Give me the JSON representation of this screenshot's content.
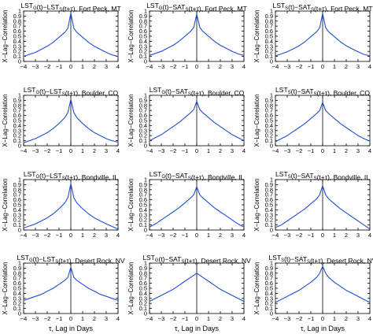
{
  "figure": {
    "series_color": "#1f4fd1",
    "ylabel": "X−Lag−Correlation",
    "xlabel": "τ, Lag in Days",
    "x_ticks": [
      "−4",
      "−3",
      "−2",
      "−1",
      "0",
      "1",
      "2",
      "3",
      "4"
    ],
    "y_ticks": [
      "0",
      "0.1",
      "0.2",
      "0.3",
      "0.4",
      "0.5",
      "0.6",
      "0.7",
      "0.8",
      "0.9",
      "1"
    ]
  },
  "chart_data": [
    {
      "type": "line",
      "row": 0,
      "col": 0,
      "title_main": "LST",
      "title_parts": [
        [
          "LST",
          "G"
        ],
        [
          "(t)−LST",
          "S"
        ],
        [
          "(t+τ), Fort Peck, MT",
          ""
        ]
      ],
      "xlim": [
        -4,
        4
      ],
      "ylim": [
        0,
        1
      ],
      "x": [
        -4,
        -3.5,
        -3,
        -2.5,
        -2,
        -1.5,
        -1,
        -0.5,
        -0.25,
        0,
        0.25,
        0.5,
        1,
        1.5,
        2,
        2.5,
        3,
        3.5,
        4
      ],
      "values": [
        0.1,
        0.14,
        0.18,
        0.24,
        0.3,
        0.38,
        0.48,
        0.58,
        0.66,
        0.96,
        0.66,
        0.58,
        0.48,
        0.38,
        0.3,
        0.24,
        0.18,
        0.13,
        0.1
      ]
    },
    {
      "type": "line",
      "row": 0,
      "col": 1,
      "title_parts": [
        [
          "LST",
          "G"
        ],
        [
          "(t)−SAT",
          "S"
        ],
        [
          "(t+τ), Fort Peck, MT",
          ""
        ]
      ],
      "xlim": [
        -4,
        4
      ],
      "ylim": [
        0,
        1
      ],
      "x": [
        -4,
        -3.5,
        -3,
        -2.5,
        -2,
        -1.5,
        -1,
        -0.5,
        -0.25,
        0,
        0.25,
        0.5,
        1,
        1.5,
        2,
        2.5,
        3,
        3.5,
        4
      ],
      "values": [
        0.12,
        0.16,
        0.2,
        0.26,
        0.32,
        0.4,
        0.5,
        0.6,
        0.68,
        0.94,
        0.68,
        0.6,
        0.5,
        0.4,
        0.32,
        0.26,
        0.2,
        0.15,
        0.12
      ]
    },
    {
      "type": "line",
      "row": 0,
      "col": 2,
      "title_parts": [
        [
          "LST",
          "S"
        ],
        [
          "(t)−SAT",
          "S"
        ],
        [
          "(t+τ), Fort Peck, MT",
          ""
        ]
      ],
      "xlim": [
        -4,
        4
      ],
      "ylim": [
        0,
        1
      ],
      "x": [
        -4,
        -3.5,
        -3,
        -2.5,
        -2,
        -1.5,
        -1,
        -0.5,
        -0.25,
        0,
        0.25,
        0.5,
        1,
        1.5,
        2,
        2.5,
        3,
        3.5,
        4
      ],
      "values": [
        0.11,
        0.15,
        0.19,
        0.25,
        0.31,
        0.39,
        0.49,
        0.59,
        0.67,
        0.95,
        0.67,
        0.59,
        0.49,
        0.39,
        0.31,
        0.25,
        0.19,
        0.14,
        0.11
      ]
    },
    {
      "type": "line",
      "row": 1,
      "col": 0,
      "title_parts": [
        [
          "LST",
          "G"
        ],
        [
          "(t)−LST",
          "S"
        ],
        [
          "(t+τ), Boulder, CO",
          ""
        ]
      ],
      "xlim": [
        -4,
        4
      ],
      "ylim": [
        0,
        1
      ],
      "x": [
        -4,
        -3.5,
        -3,
        -2.5,
        -2,
        -1.5,
        -1,
        -0.5,
        -0.25,
        0,
        0.25,
        0.5,
        1,
        1.5,
        2,
        2.5,
        3,
        3.5,
        4
      ],
      "values": [
        0.06,
        0.1,
        0.14,
        0.2,
        0.26,
        0.34,
        0.44,
        0.56,
        0.66,
        0.92,
        0.66,
        0.56,
        0.44,
        0.34,
        0.26,
        0.2,
        0.14,
        0.1,
        0.07
      ]
    },
    {
      "type": "line",
      "row": 1,
      "col": 1,
      "title_parts": [
        [
          "LST",
          "G"
        ],
        [
          "(t)−SAT",
          "S"
        ],
        [
          "(t+τ), Boulder, CO",
          ""
        ]
      ],
      "xlim": [
        -4,
        4
      ],
      "ylim": [
        0,
        1
      ],
      "x": [
        -4,
        -3.5,
        -3,
        -2.5,
        -2,
        -1.5,
        -1,
        -0.5,
        -0.25,
        0,
        0.25,
        0.5,
        1,
        1.5,
        2,
        2.5,
        3,
        3.5,
        4
      ],
      "values": [
        0.1,
        0.16,
        0.22,
        0.3,
        0.38,
        0.46,
        0.56,
        0.66,
        0.72,
        0.88,
        0.72,
        0.66,
        0.56,
        0.46,
        0.38,
        0.3,
        0.22,
        0.16,
        0.1
      ]
    },
    {
      "type": "line",
      "row": 1,
      "col": 2,
      "title_parts": [
        [
          "LST",
          "S"
        ],
        [
          "(t)−SAT",
          "S"
        ],
        [
          "(t+τ), Boulder, CO",
          ""
        ]
      ],
      "xlim": [
        -4,
        4
      ],
      "ylim": [
        0,
        1
      ],
      "x": [
        -4,
        -3.5,
        -3,
        -2.5,
        -2,
        -1.5,
        -1,
        -0.5,
        -0.25,
        0,
        0.25,
        0.5,
        1,
        1.5,
        2,
        2.5,
        3,
        3.5,
        4
      ],
      "values": [
        0.08,
        0.14,
        0.2,
        0.28,
        0.36,
        0.44,
        0.54,
        0.64,
        0.7,
        0.86,
        0.7,
        0.64,
        0.54,
        0.44,
        0.36,
        0.28,
        0.2,
        0.14,
        0.09
      ]
    },
    {
      "type": "line",
      "row": 2,
      "col": 0,
      "title_parts": [
        [
          "LST",
          "G"
        ],
        [
          "(t)−LST",
          "S"
        ],
        [
          "(t+τ), Bondville, IL",
          ""
        ]
      ],
      "xlim": [
        -4,
        4
      ],
      "ylim": [
        0,
        1
      ],
      "x": [
        -4,
        -3.5,
        -3,
        -2.5,
        -2,
        -1.5,
        -1,
        -0.5,
        -0.25,
        0,
        0.25,
        0.5,
        1,
        1.5,
        2,
        2.5,
        3,
        3.5,
        4
      ],
      "values": [
        0.04,
        0.08,
        0.12,
        0.18,
        0.24,
        0.32,
        0.42,
        0.54,
        0.64,
        0.92,
        0.64,
        0.54,
        0.42,
        0.32,
        0.24,
        0.18,
        0.12,
        0.07,
        0.02
      ]
    },
    {
      "type": "line",
      "row": 2,
      "col": 1,
      "title_parts": [
        [
          "LST",
          "G"
        ],
        [
          "(t)−SAT",
          "S"
        ],
        [
          "(t+τ), Bondville, IL",
          ""
        ]
      ],
      "xlim": [
        -4,
        4
      ],
      "ylim": [
        0,
        1
      ],
      "x": [
        -4,
        -3.5,
        -3,
        -2.5,
        -2,
        -1.5,
        -1,
        -0.5,
        -0.25,
        0,
        0.25,
        0.5,
        1,
        1.5,
        2,
        2.5,
        3,
        3.5,
        4
      ],
      "values": [
        0.06,
        0.12,
        0.2,
        0.28,
        0.36,
        0.44,
        0.54,
        0.64,
        0.7,
        0.86,
        0.7,
        0.64,
        0.54,
        0.44,
        0.36,
        0.28,
        0.2,
        0.12,
        0.06
      ]
    },
    {
      "type": "line",
      "row": 2,
      "col": 2,
      "title_parts": [
        [
          "LST",
          "S"
        ],
        [
          "(t)−SAT",
          "S"
        ],
        [
          "(t+τ), Bondville, IL",
          ""
        ]
      ],
      "xlim": [
        -4,
        4
      ],
      "ylim": [
        0,
        1
      ],
      "x": [
        -4,
        -3.5,
        -3,
        -2.5,
        -2,
        -1.5,
        -1,
        -0.5,
        -0.25,
        0,
        0.25,
        0.5,
        1,
        1.5,
        2,
        2.5,
        3,
        3.5,
        4
      ],
      "values": [
        0.05,
        0.1,
        0.18,
        0.26,
        0.34,
        0.42,
        0.52,
        0.62,
        0.7,
        0.88,
        0.7,
        0.62,
        0.52,
        0.42,
        0.34,
        0.26,
        0.18,
        0.1,
        0.02
      ]
    },
    {
      "type": "line",
      "row": 3,
      "col": 0,
      "title_parts": [
        [
          "LST",
          "G"
        ],
        [
          "(t)−LST",
          "S"
        ],
        [
          "(t+τ), Desert Rock, NV",
          ""
        ]
      ],
      "xlim": [
        -4,
        4
      ],
      "ylim": [
        0,
        1
      ],
      "x": [
        -4,
        -3.5,
        -3,
        -2.5,
        -2,
        -1.5,
        -1,
        -0.5,
        -0.25,
        0,
        0.25,
        0.5,
        1,
        1.5,
        2,
        2.5,
        3,
        3.5,
        4
      ],
      "values": [
        0.26,
        0.3,
        0.34,
        0.38,
        0.44,
        0.5,
        0.58,
        0.66,
        0.72,
        0.92,
        0.72,
        0.66,
        0.58,
        0.5,
        0.44,
        0.38,
        0.34,
        0.3,
        0.26
      ]
    },
    {
      "type": "line",
      "row": 3,
      "col": 1,
      "title_parts": [
        [
          "LST",
          "G"
        ],
        [
          "(t)−SAT",
          "S"
        ],
        [
          "(t+τ), Desert Rock, NV",
          ""
        ]
      ],
      "xlim": [
        -4,
        4
      ],
      "ylim": [
        0,
        1
      ],
      "x": [
        -4,
        -3.5,
        -3,
        -2.5,
        -2,
        -1.5,
        -1,
        -0.5,
        -0.25,
        0,
        0.25,
        0.5,
        1,
        1.5,
        2,
        2.5,
        3,
        3.5,
        4
      ],
      "values": [
        0.24,
        0.3,
        0.36,
        0.42,
        0.48,
        0.56,
        0.64,
        0.72,
        0.76,
        0.8,
        0.76,
        0.72,
        0.64,
        0.56,
        0.48,
        0.42,
        0.36,
        0.3,
        0.24
      ]
    },
    {
      "type": "line",
      "row": 3,
      "col": 2,
      "title_parts": [
        [
          "LST",
          "S"
        ],
        [
          "(t)−SAT",
          "S"
        ],
        [
          "(t+τ), Desert Rock, NV",
          ""
        ]
      ],
      "xlim": [
        -4,
        4
      ],
      "ylim": [
        0,
        1
      ],
      "x": [
        -4,
        -3.5,
        -3,
        -2.5,
        -2,
        -1.5,
        -1,
        -0.5,
        -0.25,
        0,
        0.25,
        0.5,
        1,
        1.5,
        2,
        2.5,
        3,
        3.5,
        4
      ],
      "values": [
        0.22,
        0.28,
        0.34,
        0.4,
        0.46,
        0.54,
        0.62,
        0.72,
        0.8,
        0.94,
        0.8,
        0.72,
        0.62,
        0.54,
        0.46,
        0.4,
        0.34,
        0.28,
        0.22
      ]
    }
  ]
}
